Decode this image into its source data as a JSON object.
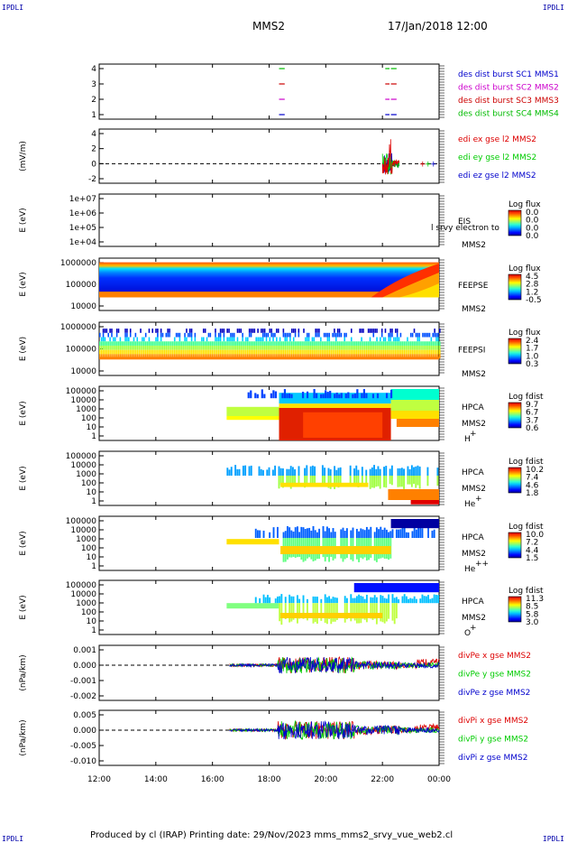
{
  "corners": {
    "tl": "IPDLI",
    "tr": "IPDLI",
    "bl": "IPDLI",
    "br": "IPDLI"
  },
  "header": {
    "title": "MMS2",
    "datetime": "17/Jan/2018 12:00"
  },
  "footer": "Produced by cl (IRAP)   Printing date: 29/Nov/2023   mms_mms2_srvy_vue_web2.cl",
  "colors": {
    "mms1": "#0000cc",
    "mms2": "#cc00cc",
    "mms3": "#cc0000",
    "mms4": "#00bb00",
    "x": "#dd0000",
    "y": "#00cc00",
    "z": "#0000cc"
  },
  "chart_data": {
    "type": "stacked-panels",
    "x_axis": {
      "ticks": [
        "12:00",
        "14:00",
        "16:00",
        "18:00",
        "20:00",
        "22:00",
        "00:00"
      ],
      "range_hours": [
        12,
        24
      ]
    },
    "panels": [
      {
        "id": "burst",
        "type": "line",
        "ylabel": "",
        "yticks": [
          "4",
          "3",
          "2",
          "1"
        ],
        "legend": [
          "des dist burst SC1 MMS1",
          "des dist burst SC2 MMS2",
          "des dist burst SC3 MMS3",
          "des dist burst SC4 MMS4"
        ],
        "intervals_hours": [
          [
            18.35,
            18.55
          ],
          [
            22.1,
            22.25
          ],
          [
            22.3,
            22.5
          ]
        ]
      },
      {
        "id": "efield",
        "type": "line",
        "ylabel": "(mV/m)",
        "yticks": [
          "4",
          "2",
          "0",
          "-2"
        ],
        "ylim": [
          -2,
          4
        ],
        "legend": [
          "edi ex gse l2 MMS2",
          "edi ey gse l2 MMS2",
          "edi ez gse l2 MMS2"
        ]
      },
      {
        "id": "eis",
        "type": "heatmap",
        "ylabel": "E (eV)",
        "yticks": [
          "1e+07",
          "1e+06",
          "1e+05",
          "1e+04"
        ],
        "side": [
          "EIS",
          "MMS2"
        ],
        "overlay_text": "l srvy electron to",
        "colorbar": {
          "title": "Log flux",
          "values": [
            "0.0",
            "0.0",
            "0.0",
            "0.0"
          ]
        }
      },
      {
        "id": "feepse",
        "type": "heatmap",
        "ylabel": "E (eV)",
        "yticks": [
          "1000000",
          "100000",
          "10000"
        ],
        "side": [
          "FEEPSE",
          "MMS2"
        ],
        "colorbar": {
          "title": "Log flux",
          "values": [
            "4.5",
            "2.8",
            "1.2",
            "-0.5"
          ]
        }
      },
      {
        "id": "feepsi",
        "type": "heatmap",
        "ylabel": "E (eV)",
        "yticks": [
          "1000000",
          "100000",
          "10000"
        ],
        "side": [
          "FEEPSI",
          "MMS2"
        ],
        "colorbar": {
          "title": "Log flux",
          "values": [
            "2.4",
            "1.7",
            "1.0",
            "0.3"
          ]
        }
      },
      {
        "id": "hpca_h",
        "type": "heatmap",
        "ylabel": "E (eV)",
        "yticks": [
          "100000",
          "10000",
          "1000",
          "100",
          "10",
          "1"
        ],
        "side": [
          "HPCA",
          "MMS2",
          "H",
          "+"
        ],
        "colorbar": {
          "title": "Log fdist",
          "values": [
            "9.7",
            "6.7",
            "3.7",
            "0.6"
          ]
        }
      },
      {
        "id": "hpca_he",
        "type": "heatmap",
        "ylabel": "E (eV)",
        "yticks": [
          "100000",
          "10000",
          "1000",
          "100",
          "10",
          "1"
        ],
        "side": [
          "HPCA",
          "MMS2",
          "He",
          "+"
        ],
        "colorbar": {
          "title": "Log fdist",
          "values": [
            "10.2",
            "7.4",
            "4.6",
            "1.8"
          ]
        }
      },
      {
        "id": "hpca_hepp",
        "type": "heatmap",
        "ylabel": "E (eV)",
        "yticks": [
          "100000",
          "10000",
          "1000",
          "100",
          "10",
          "1"
        ],
        "side": [
          "HPCA",
          "MMS2",
          "He",
          "++"
        ],
        "colorbar": {
          "title": "Log fdist",
          "values": [
            "10.0",
            "7.2",
            "4.4",
            "1.5"
          ]
        }
      },
      {
        "id": "hpca_o",
        "type": "heatmap",
        "ylabel": "E (eV)",
        "yticks": [
          "100000",
          "10000",
          "1000",
          "100",
          "10",
          "1"
        ],
        "side": [
          "HPCA",
          "MMS2",
          "O",
          "+"
        ],
        "colorbar": {
          "title": "Log fdist",
          "values": [
            "11.3",
            "8.5",
            "5.8",
            "3.0"
          ]
        }
      },
      {
        "id": "divpe",
        "type": "line",
        "ylabel": "(nPa/km)",
        "yticks": [
          "0.001",
          "0.000",
          "-0.001",
          "-0.002"
        ],
        "legend": [
          "divPe x gse MMS2",
          "divPe y gse MMS2",
          "divPe z gse MMS2"
        ]
      },
      {
        "id": "divpi",
        "type": "line",
        "ylabel": "(nPa/km)",
        "yticks": [
          "0.005",
          "0.000",
          "-0.005",
          "-0.010"
        ],
        "legend": [
          "divPi x gse MMS2",
          "divPi y gse MMS2",
          "divPi z gse MMS2"
        ]
      }
    ]
  }
}
